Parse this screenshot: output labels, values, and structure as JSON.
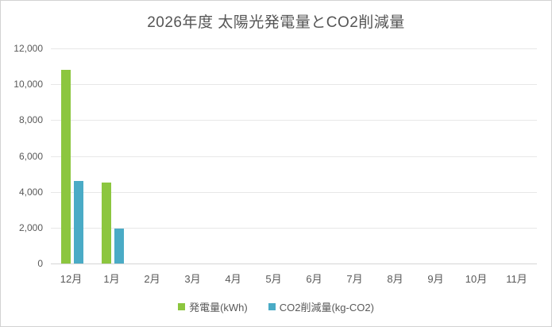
{
  "window": {
    "background": "#ffffff",
    "border_color": "#d2d2d2"
  },
  "colors": {
    "title_text": "#555555",
    "axis_text": "#595959",
    "gridline": "#e7e7e7",
    "axis_line": "#d5d5d5"
  },
  "chart_data": {
    "type": "bar",
    "title": "2026年度 太陽光発電量とCO2削減量",
    "xlabel": "",
    "ylabel": "",
    "categories": [
      "12月",
      "1月",
      "2月",
      "3月",
      "4月",
      "5月",
      "6月",
      "7月",
      "8月",
      "9月",
      "10月",
      "11月"
    ],
    "series": [
      {
        "id": "generation",
        "name": "発電量(kWh)",
        "color": "#8cc63f",
        "values": [
          10800,
          4500,
          0,
          0,
          0,
          0,
          0,
          0,
          0,
          0,
          0,
          0
        ]
      },
      {
        "id": "co2",
        "name": "CO2削減量(kg-CO2)",
        "color": "#4aabc6",
        "values": [
          4600,
          1950,
          0,
          0,
          0,
          0,
          0,
          0,
          0,
          0,
          0,
          0
        ]
      }
    ],
    "ylim": [
      0,
      12000
    ],
    "ytick_step": 2000,
    "ytick_labels": [
      "0",
      "2,000",
      "4,000",
      "6,000",
      "8,000",
      "10,000",
      "12,000"
    ],
    "grid": true,
    "legend_position": "bottom"
  }
}
